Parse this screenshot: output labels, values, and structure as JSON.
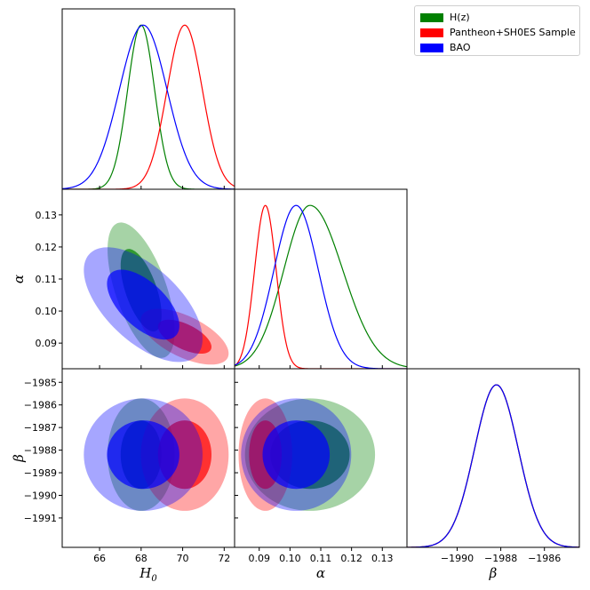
{
  "chart_data": {
    "type": "triangle-corner-plot",
    "parameters": [
      {
        "key": "H0",
        "label_main": "H",
        "label_sub": "0",
        "range": [
          64.2,
          72.5
        ],
        "ticks": [
          66,
          68,
          70,
          72
        ]
      },
      {
        "key": "alpha",
        "label_main": "α",
        "label_sub": "",
        "range": [
          0.082,
          0.138
        ],
        "ticks": [
          0.09,
          0.1,
          0.11,
          0.12,
          0.13
        ]
      },
      {
        "key": "beta",
        "label_main": "β",
        "label_sub": "",
        "range": [
          -1992.3,
          -1984.4
        ],
        "ticks": [
          -1990,
          -1988,
          -1986
        ]
      }
    ],
    "tick_labels": {
      "H0": [
        "66",
        "68",
        "70",
        "72"
      ],
      "alpha": [
        "0.09",
        "0.10",
        "0.11",
        "0.12",
        "0.13"
      ],
      "beta_y": [
        "−1985",
        "−1986",
        "−1987",
        "−1988",
        "−1989",
        "−1990",
        "−1991"
      ],
      "beta_x": [
        "−1990",
        "−1988",
        "−1986"
      ]
    },
    "series": [
      {
        "name": "H(z)",
        "color": "#008000",
        "mean": {
          "H0": 68.0,
          "alpha": 0.1065,
          "beta": -1988.2
        },
        "sigma": {
          "H0": 0.65,
          "alpha": 0.0085,
          "beta": 1.0
        },
        "corr_H0_alpha": -0.6
      },
      {
        "name": "Pantheon+SH0ES Sample",
        "color": "#ff0000",
        "mean": {
          "H0": 70.1,
          "alpha": 0.092,
          "beta": -1988.2
        },
        "sigma": {
          "H0": 0.85,
          "alpha": 0.0035,
          "beta": 1.0
        },
        "corr_H0_alpha": -0.6
      },
      {
        "name": "BAO",
        "color": "#0000ff",
        "mean": {
          "H0": 68.1,
          "alpha": 0.102,
          "beta": -1988.2
        },
        "sigma": {
          "H0": 1.15,
          "alpha": 0.0072,
          "beta": 1.0
        },
        "corr_H0_alpha": -0.6
      }
    ],
    "contour_levels": [
      "68%",
      "95%"
    ],
    "legend_position": "top-right",
    "grid": false
  }
}
